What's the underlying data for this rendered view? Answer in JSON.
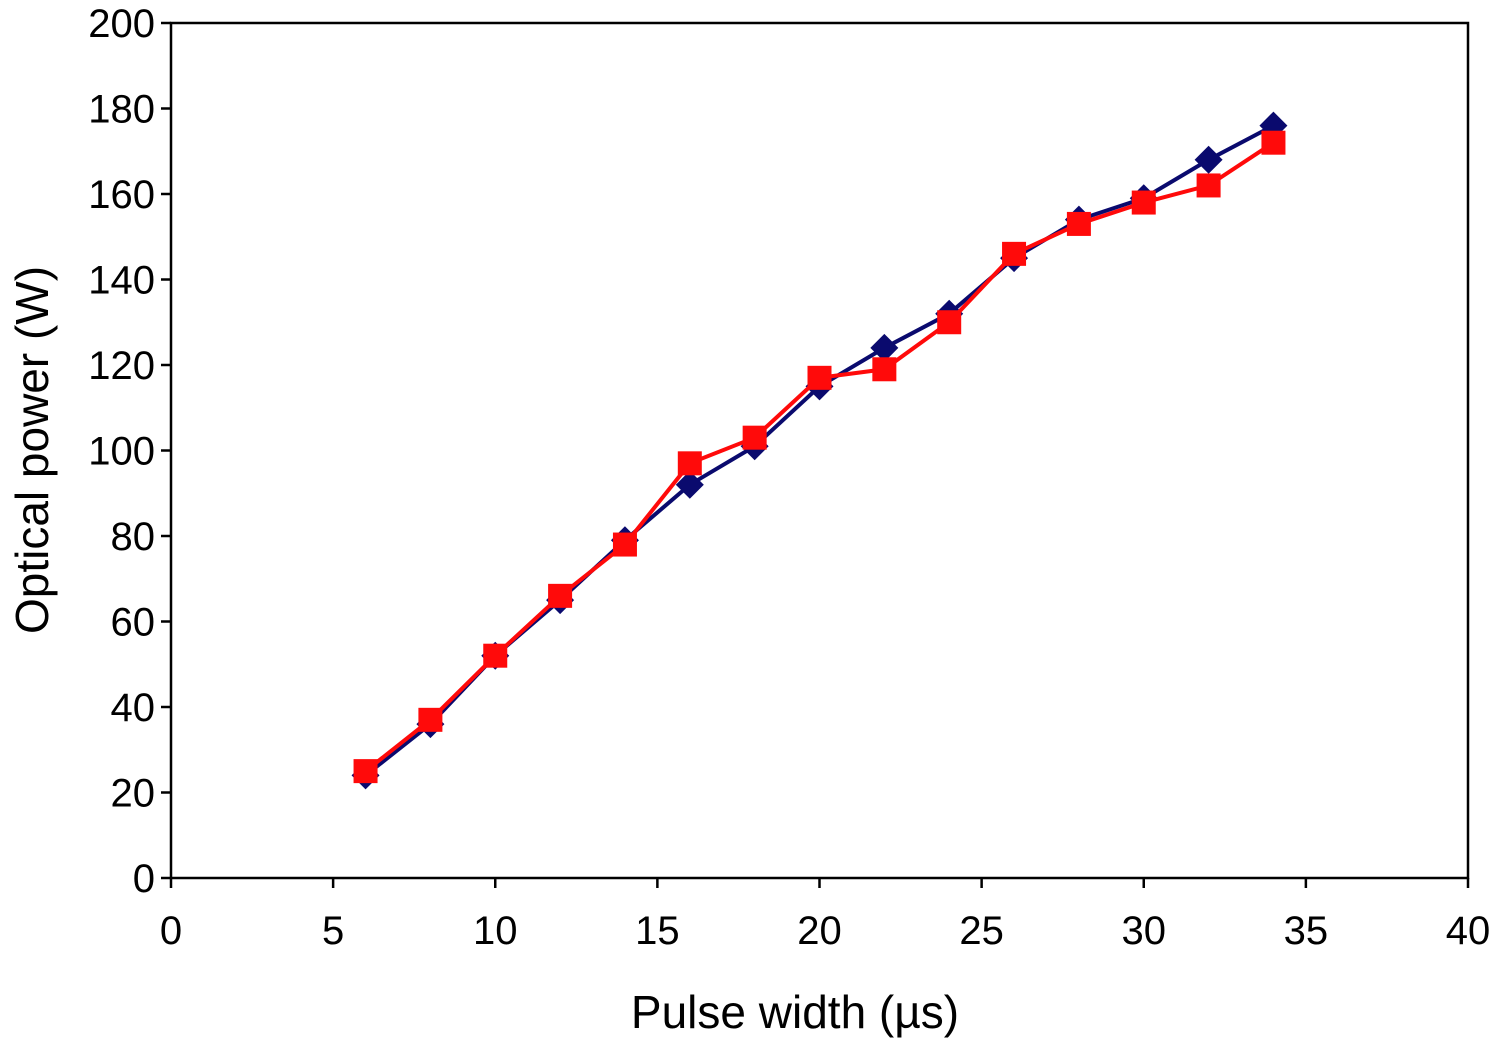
{
  "chart_data": {
    "type": "line",
    "title": "",
    "xlabel": "Pulse width (µs)",
    "ylabel": "Optical power (W)",
    "xlim": [
      0,
      40
    ],
    "ylim": [
      0,
      200
    ],
    "xticks": [
      0,
      5,
      10,
      15,
      20,
      25,
      30,
      35,
      40
    ],
    "yticks": [
      0,
      20,
      40,
      60,
      80,
      100,
      120,
      140,
      160,
      180,
      200
    ],
    "grid": false,
    "x": [
      6,
      8,
      10,
      12,
      14,
      16,
      18,
      20,
      22,
      24,
      26,
      28,
      30,
      32,
      34
    ],
    "series": [
      {
        "marker": "diamond",
        "color": "#0a0a6e",
        "values": [
          24,
          36,
          52,
          65,
          79,
          92,
          101,
          115,
          124,
          132,
          145,
          154,
          159,
          168,
          176
        ]
      },
      {
        "marker": "square",
        "color": "#ff0a0a",
        "values": [
          25,
          37,
          52,
          66,
          78,
          97,
          103,
          117,
          119,
          130,
          146,
          153,
          158,
          162,
          172
        ]
      }
    ]
  }
}
